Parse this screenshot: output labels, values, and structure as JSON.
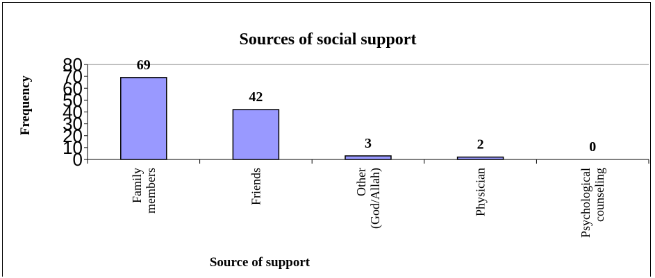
{
  "chart_data": {
    "type": "bar",
    "title": "Sources of social support",
    "xlabel": "Source of support",
    "ylabel": "Frequency",
    "categories": [
      [
        "Family",
        "members"
      ],
      [
        "Friends"
      ],
      [
        "Other",
        "(God/Allah)"
      ],
      [
        "Physician"
      ],
      [
        "Psychological",
        "counseling"
      ]
    ],
    "values": [
      69,
      42,
      3,
      2,
      0
    ],
    "data_labels": [
      "69",
      "42",
      "3",
      "2",
      "0"
    ],
    "ylim": [
      0,
      80
    ],
    "yticks": [
      "0",
      "10",
      "20",
      "30",
      "40",
      "50",
      "60",
      "70",
      "80"
    ],
    "grid": false,
    "legend": "none",
    "colors": {
      "bar_fill": "#9999ff",
      "bar_stroke": "#000000",
      "plot_border": "#808080",
      "axis": "#000000"
    }
  }
}
